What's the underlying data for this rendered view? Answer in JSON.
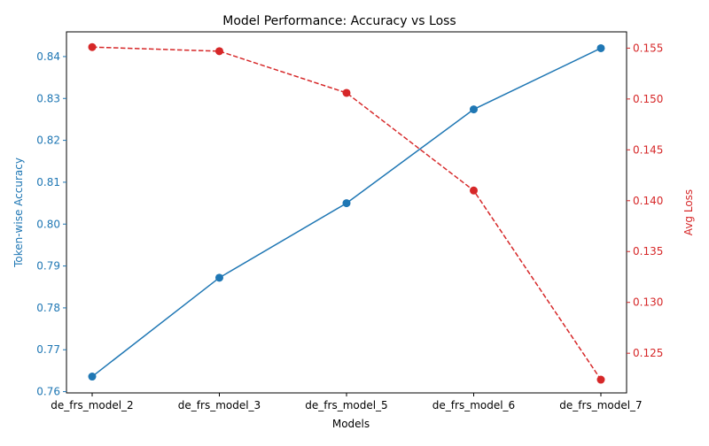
{
  "chart_data": {
    "type": "line",
    "title": "Model Performance: Accuracy vs Loss",
    "xlabel": "Models",
    "categories": [
      "de_frs_model_2",
      "de_frs_model_3",
      "de_frs_model_5",
      "de_frs_model_6",
      "de_frs_model_7"
    ],
    "y_left": {
      "label": "Token-wise Accuracy",
      "color": "#1f77b4",
      "ylim": [
        0.7597,
        0.8459
      ],
      "ticks": [
        "0.76",
        "0.77",
        "0.78",
        "0.79",
        "0.80",
        "0.81",
        "0.82",
        "0.83",
        "0.84"
      ],
      "tick_values": [
        0.76,
        0.77,
        0.78,
        0.79,
        0.8,
        0.81,
        0.82,
        0.83,
        0.84
      ]
    },
    "y_right": {
      "label": "Avg Loss",
      "color": "#d62728",
      "ylim": [
        0.1211,
        0.1566
      ],
      "ticks": [
        "0.125",
        "0.130",
        "0.135",
        "0.140",
        "0.145",
        "0.150",
        "0.155"
      ],
      "tick_values": [
        0.125,
        0.13,
        0.135,
        0.14,
        0.145,
        0.15,
        0.155
      ]
    },
    "series": [
      {
        "axis": "left",
        "color": "#1f77b4",
        "line_style": "solid",
        "marker": "circle",
        "values": [
          0.7636,
          0.7872,
          0.805,
          0.8274,
          0.842
        ]
      },
      {
        "axis": "right",
        "color": "#d62728",
        "line_style": "dashed",
        "marker": "circle",
        "values": [
          0.1551,
          0.1547,
          0.1506,
          0.141,
          0.1224
        ]
      }
    ],
    "grid": false,
    "legend": "none"
  }
}
